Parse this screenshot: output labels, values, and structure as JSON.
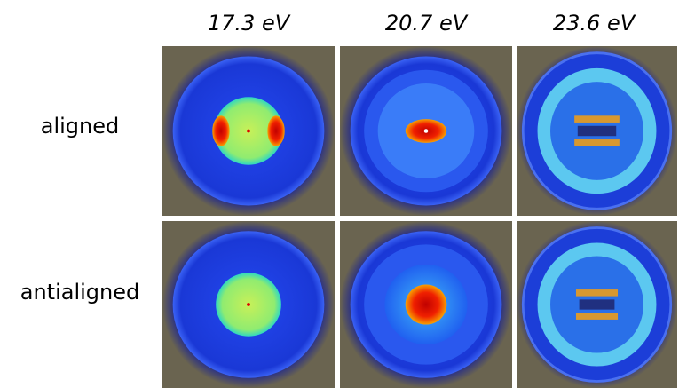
{
  "columns": [
    "17.3 eV",
    "20.7 eV",
    "23.6 eV"
  ],
  "rows": [
    "aligned",
    "antialigned"
  ]
}
